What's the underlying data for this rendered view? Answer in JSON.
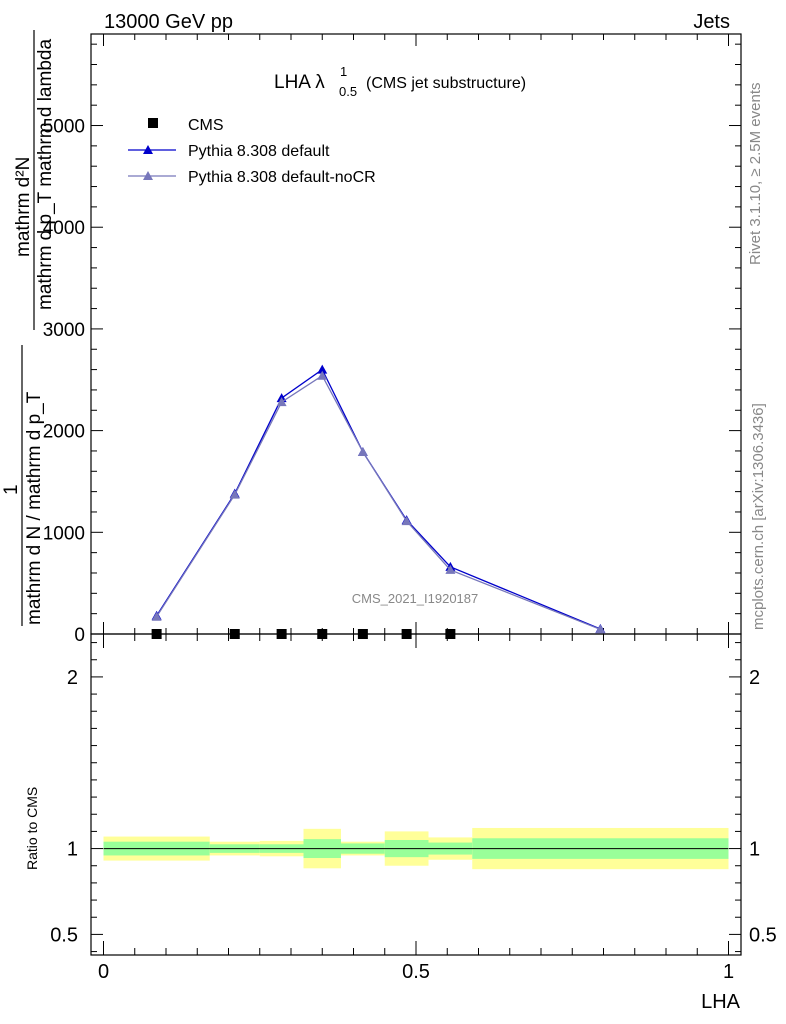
{
  "header": {
    "left": "13000 GeV pp",
    "right": "Jets"
  },
  "side_labels": {
    "rivet": "Rivet 3.1.10, ≥ 2.5M events",
    "mcplots": "mcplots.cern.ch [arXiv:1306.3436]"
  },
  "chart_data": [
    {
      "type": "line",
      "title": "LHA λ",
      "title_sup": "1",
      "title_sub": "0.5",
      "title_suffix": "(CMS jet substructure)",
      "watermark": "CMS_2021_I1920187",
      "ylabel_numerator": "mathrm d²N",
      "ylabel_denominator": "mathrm d p_T mathrm d lambda",
      "ylabel_prefix_1": "1",
      "ylabel_prefix_2": "mathrm d N / mathrm d p_T",
      "xlim": [
        -0.02,
        1.02
      ],
      "ylim": [
        0,
        5900
      ],
      "yticks": [
        0,
        1000,
        2000,
        3000,
        4000,
        5000
      ],
      "ytick_labels": [
        "0",
        "1000",
        "2000",
        "3000",
        "4000",
        "5000"
      ],
      "legend_placement": "top-left",
      "legend": [
        "CMS",
        "Pythia 8.308 default",
        "Pythia 8.308 default-noCR"
      ],
      "series": [
        {
          "name": "CMS",
          "marker": "square",
          "color": "#000000",
          "x": [
            0.085,
            0.21,
            0.285,
            0.35,
            0.415,
            0.485,
            0.555
          ],
          "y": [
            0,
            0,
            0,
            0,
            0,
            0,
            0
          ]
        },
        {
          "name": "Pythia 8.308 default",
          "marker": "triangle",
          "color": "#0000cc",
          "x": [
            0.085,
            0.21,
            0.285,
            0.35,
            0.415,
            0.485,
            0.555,
            0.795
          ],
          "y": [
            180,
            1380,
            2320,
            2600,
            1790,
            1120,
            660,
            50
          ]
        },
        {
          "name": "Pythia 8.308 default-noCR",
          "marker": "triangle",
          "color": "#7777bb",
          "x": [
            0.085,
            0.21,
            0.285,
            0.35,
            0.415,
            0.485,
            0.555,
            0.795
          ],
          "y": [
            170,
            1370,
            2280,
            2540,
            1790,
            1110,
            630,
            45
          ]
        }
      ]
    },
    {
      "type": "area",
      "ylabel": "Ratio to CMS",
      "xlabel": "LHA",
      "xlim": [
        -0.02,
        1.02
      ],
      "ylim": [
        0.38,
        2.25
      ],
      "yticks": [
        0.5,
        1,
        2
      ],
      "ytick_labels": [
        "0.5",
        "1",
        "2"
      ],
      "xticks": [
        0,
        0.5,
        1
      ],
      "xtick_labels": [
        "0",
        "0.5",
        "1"
      ],
      "reference_line": 1,
      "bands": [
        {
          "x0": 0.0,
          "x1": 0.17,
          "inner": [
            0.96,
            1.04
          ],
          "outer": [
            0.93,
            1.07
          ]
        },
        {
          "x0": 0.17,
          "x1": 0.25,
          "inner": [
            0.975,
            1.025
          ],
          "outer": [
            0.96,
            1.04
          ]
        },
        {
          "x0": 0.25,
          "x1": 0.32,
          "inner": [
            0.975,
            1.025
          ],
          "outer": [
            0.955,
            1.045
          ]
        },
        {
          "x0": 0.32,
          "x1": 0.38,
          "inner": [
            0.945,
            1.055
          ],
          "outer": [
            0.885,
            1.115
          ]
        },
        {
          "x0": 0.38,
          "x1": 0.45,
          "inner": [
            0.97,
            1.03
          ],
          "outer": [
            0.96,
            1.04
          ]
        },
        {
          "x0": 0.45,
          "x1": 0.52,
          "inner": [
            0.95,
            1.05
          ],
          "outer": [
            0.9,
            1.1
          ]
        },
        {
          "x0": 0.52,
          "x1": 0.59,
          "inner": [
            0.965,
            1.035
          ],
          "outer": [
            0.935,
            1.065
          ]
        },
        {
          "x0": 0.59,
          "x1": 1.0,
          "inner": [
            0.94,
            1.06
          ],
          "outer": [
            0.88,
            1.12
          ]
        }
      ],
      "band_colors": {
        "inner": "#99ff99",
        "outer": "#ffff99"
      }
    }
  ]
}
